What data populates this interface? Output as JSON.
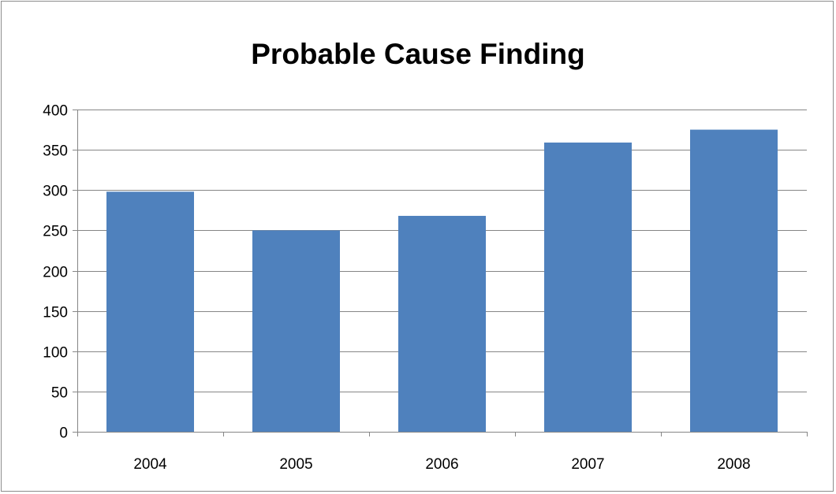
{
  "chart_data": {
    "type": "bar",
    "title": "Probable Cause Finding",
    "xlabel": "",
    "ylabel": "",
    "categories": [
      "2004",
      "2005",
      "2006",
      "2007",
      "2008"
    ],
    "values": [
      298,
      250,
      268,
      359,
      375
    ],
    "ylim": [
      0,
      400
    ],
    "yticks": [
      0,
      50,
      100,
      150,
      200,
      250,
      300,
      350,
      400
    ],
    "grid": true,
    "legend": "none",
    "bar_color": "#4f81bd",
    "grid_color": "#868686"
  }
}
